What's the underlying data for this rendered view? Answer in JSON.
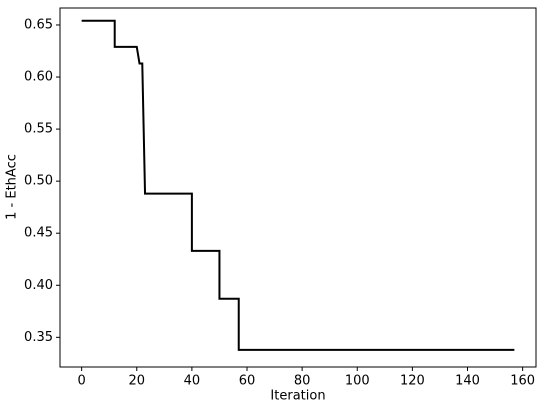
{
  "chart_data": {
    "type": "line",
    "xlabel": "Iteration",
    "ylabel": "1 - EthAcc",
    "x": [
      0,
      12,
      12,
      20,
      21,
      22,
      23,
      40,
      40,
      50,
      50,
      57,
      57,
      157
    ],
    "series": [
      {
        "color": "#000000",
        "values": [
          0.654,
          0.654,
          0.629,
          0.629,
          0.613,
          0.613,
          0.488,
          0.488,
          0.433,
          0.433,
          0.387,
          0.387,
          0.338,
          0.338
        ]
      }
    ],
    "xlim": [
      -7.85,
      164.85
    ],
    "xticks": [
      0,
      20,
      40,
      60,
      80,
      100,
      120,
      140,
      160
    ],
    "ylim": [
      0.3215,
      0.6663
    ],
    "yticks": [
      {
        "value": 0.35,
        "label": "0.35"
      },
      {
        "value": 0.4,
        "label": "0.40"
      },
      {
        "value": 0.45,
        "label": "0.45"
      },
      {
        "value": 0.5,
        "label": "0.50"
      },
      {
        "value": 0.55,
        "label": "0.55"
      },
      {
        "value": 0.6,
        "label": "0.60"
      },
      {
        "value": 0.65,
        "label": "0.65"
      }
    ]
  }
}
